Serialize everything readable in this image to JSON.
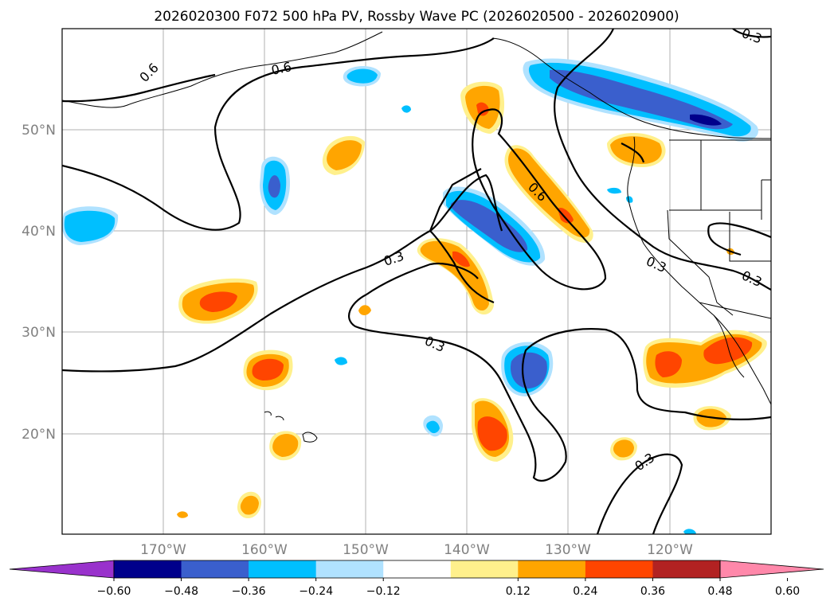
{
  "title": "2026020300 F072 500 hPa PV, Rossby Wave PC (2026020500 - 2026020900)",
  "lat_labels": [
    "50°N",
    "40°N",
    "30°N",
    "20°N"
  ],
  "lon_labels": [
    "170°W",
    "160°W",
    "150°W",
    "140°W",
    "130°W",
    "120°W"
  ],
  "contour_labels": [
    "0.6",
    "0.6",
    "0.6",
    "0.3",
    "0.3",
    "0.3",
    "0.3",
    "0.3",
    "0.3"
  ],
  "colorbar": {
    "ticks": [
      "−0.60",
      "−0.48",
      "−0.36",
      "−0.24",
      "−0.12",
      "0.12",
      "0.24",
      "0.36",
      "0.48",
      "0.60"
    ],
    "colors": [
      "#9932cc",
      "#00008b",
      "#3a5fcd",
      "#00bfff",
      "#b0e2ff",
      "#ffffff",
      "#fff08c",
      "#ffa500",
      "#ff4500",
      "#b22222",
      "#ff88aa"
    ]
  }
}
